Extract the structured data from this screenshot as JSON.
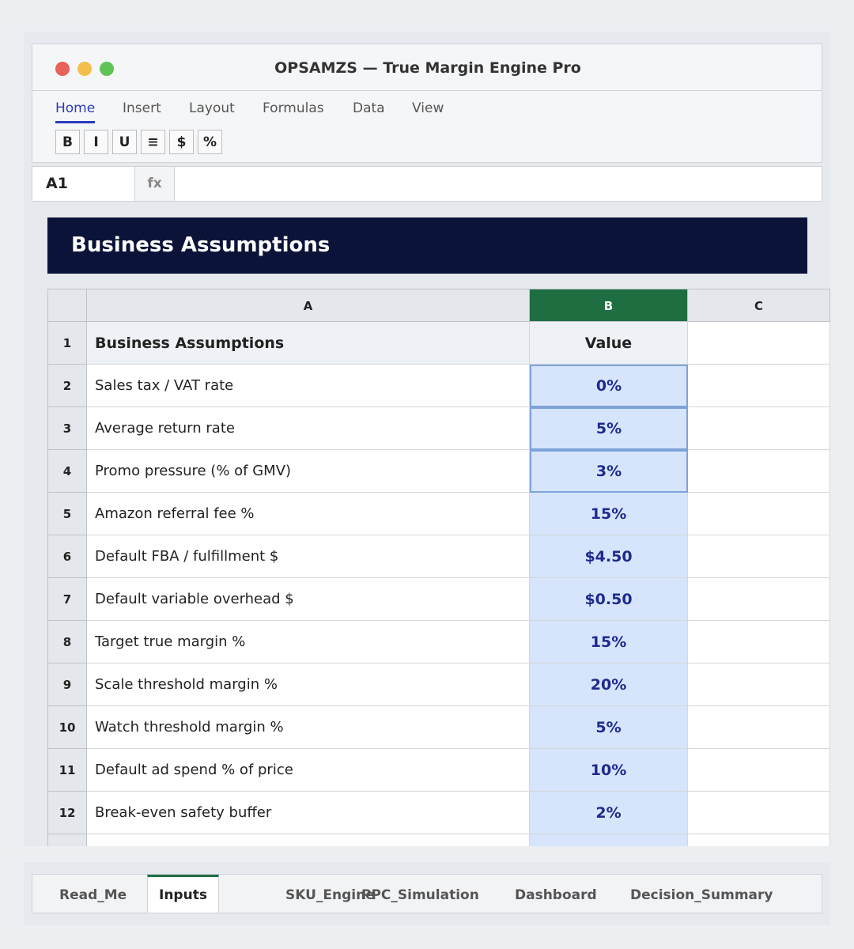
{
  "window": {
    "title": "OPSAMZS — True Margin Engine Pro"
  },
  "ribbon": {
    "tabs": [
      "Home",
      "Insert",
      "Layout",
      "Formulas",
      "Data",
      "View"
    ],
    "tools": [
      "B",
      "I",
      "U",
      "≡",
      "$",
      "%"
    ]
  },
  "formula_bar": {
    "cell": "A1",
    "fx": "fx"
  },
  "sheet": {
    "banner": "Business Assumptions",
    "columns": [
      "A",
      "B",
      "C"
    ],
    "rows": [
      [
        "1",
        "Business Assumptions",
        "Value"
      ],
      [
        "2",
        "Sales tax / VAT rate",
        "0%"
      ],
      [
        "3",
        "Average return rate",
        "5%"
      ],
      [
        "4",
        "Promo pressure (% of GMV)",
        "3%"
      ],
      [
        "5",
        "Amazon referral fee %",
        "15%"
      ],
      [
        "6",
        "Default FBA / fulfillment $",
        "$4.50"
      ],
      [
        "7",
        "Default variable overhead $",
        "$0.50"
      ],
      [
        "8",
        "Target true margin %",
        "15%"
      ],
      [
        "9",
        "Scale threshold margin %",
        "20%"
      ],
      [
        "10",
        "Watch threshold margin %",
        "5%"
      ],
      [
        "11",
        "Default ad spend % of price",
        "10%"
      ],
      [
        "12",
        "Break-even safety buffer",
        "2%"
      ]
    ]
  },
  "sheet_tabs": [
    "Read_Me",
    "Inputs",
    "SKU_Engine",
    "PPC_Simulation",
    "Dashboard",
    "Decision_Summary"
  ]
}
